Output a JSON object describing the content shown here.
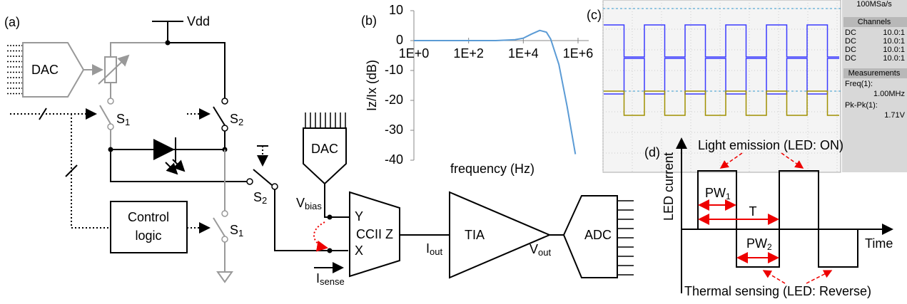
{
  "panels": {
    "a": "(a)",
    "b": "(b)",
    "c": "(c)",
    "d": "(d)"
  },
  "circuit": {
    "vdd": "Vdd",
    "dac_left": "DAC",
    "s1_top": {
      "main": "S",
      "sub": "1"
    },
    "s2_top": {
      "main": "S",
      "sub": "2"
    },
    "s2_mid": {
      "main": "S",
      "sub": "2"
    },
    "s1_bottom": {
      "main": "S",
      "sub": "1"
    },
    "control": [
      "Control",
      "logic"
    ],
    "dac_mid": "DAC",
    "vbias": {
      "main": "V",
      "sub": "bias"
    },
    "y": "Y",
    "x": "X",
    "z": "Z",
    "ccii": "CCII",
    "iout": {
      "main": "I",
      "sub": "out"
    },
    "tia": "TIA",
    "vout": {
      "main": "V",
      "sub": "out"
    },
    "adc": "ADC",
    "isense": {
      "main": "I",
      "sub": "sense"
    }
  },
  "chart_data": {
    "type": "line",
    "x_label": "frequency (Hz)",
    "y_label": "Iz/Ix (dB)",
    "x_scale": "log",
    "color": "#5b9bd5",
    "x": [
      1,
      100,
      1000,
      5000,
      10000,
      20000,
      40000,
      70000,
      100000,
      200000,
      400000,
      800000
    ],
    "values": [
      0,
      0,
      0,
      0.3,
      0.8,
      2.2,
      3.4,
      2.8,
      0.5,
      -8,
      -22,
      -38
    ],
    "xlim": [
      1,
      1000000
    ],
    "ylim": [
      -40,
      10
    ],
    "xticks": [
      {
        "value": 1,
        "label": "1E+0"
      },
      {
        "value": 100,
        "label": "1E+2"
      },
      {
        "value": 10000,
        "label": "1E+4"
      },
      {
        "value": 1000000,
        "label": "1E+6"
      }
    ],
    "yticks": [
      10,
      0,
      -10,
      -20,
      -30,
      -40
    ]
  },
  "scope": {
    "header": "100MSa/s",
    "channels_title": "Channels",
    "channels": [
      {
        "coupling": "DC",
        "probe": "10.0:1",
        "color": "#3b3bff"
      },
      {
        "coupling": "DC",
        "probe": "10.0:1",
        "color": "#d020d0"
      },
      {
        "coupling": "DC",
        "probe": "10.0:1",
        "color": "#a09000"
      },
      {
        "coupling": "DC",
        "probe": "10.0:1",
        "color": "#20b0a0"
      }
    ],
    "measurements_title": "Measurements",
    "freq_label": "Freq(1):",
    "freq_value": "1.00MHz",
    "pkpk_label": "Pk-Pk(1):",
    "pkpk_value": "1.71V"
  },
  "timing": {
    "y_label": "LED current",
    "x_label": "Time",
    "emission": "Light emission (LED: ON)",
    "sensing": "Thermal sensing (LED: Reverse)",
    "pw1": {
      "main": "PW",
      "sub": "1"
    },
    "period": "T",
    "pw2": {
      "main": "PW",
      "sub": "2"
    }
  }
}
